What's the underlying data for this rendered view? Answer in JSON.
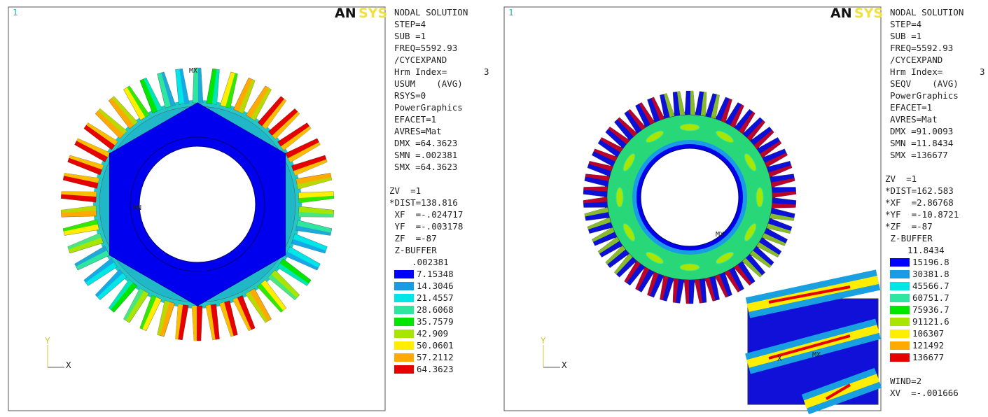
{
  "panels": [
    {
      "window": "1",
      "logo_a": "AN",
      "logo_b": "SYS",
      "info_a": [
        "NODAL SOLUTION",
        "STEP=4",
        "SUB =1",
        "FREQ=5592.93",
        "/CYCEXPAND"
      ],
      "hrm": {
        "label": "Hrm Index=",
        "value": "3"
      },
      "info_b": [
        "USUM    (AVG)",
        "RSYS=0",
        "PowerGraphics",
        "EFACET=1",
        "AVRES=Mat",
        "DMX =64.3623",
        "SMN =.002381",
        "SMX =64.3623"
      ],
      "view": [
        "ZV  =1",
        "*DIST=138.816",
        " XF  =-.024717",
        " YF  =-.003178",
        " ZF  =-87",
        " Z-BUFFER"
      ],
      "legend_min": ".002381",
      "legend": [
        {
          "value": "7.15348",
          "color": "#0000ff"
        },
        {
          "value": "14.3046",
          "color": "#1a9be6"
        },
        {
          "value": "21.4557",
          "color": "#00e5e5"
        },
        {
          "value": "28.6068",
          "color": "#2ee6a0"
        },
        {
          "value": "35.7579",
          "color": "#00e600"
        },
        {
          "value": "42.909",
          "color": "#a8e600"
        },
        {
          "value": "50.0601",
          "color": "#ffee00"
        },
        {
          "value": "57.2112",
          "color": "#ffaa00"
        },
        {
          "value": "64.3623",
          "color": "#e60000"
        }
      ],
      "mx": "MX",
      "mn": "MN",
      "axis_y": "Y",
      "axis_x": "X"
    },
    {
      "window": "1",
      "logo_a": "AN",
      "logo_b": "SYS",
      "info_a": [
        "NODAL SOLUTION",
        "STEP=4",
        "SUB =1",
        "FREQ=5592.93",
        "/CYCEXPAND"
      ],
      "hrm": {
        "label": "Hrm Index=",
        "value": "3"
      },
      "info_b": [
        "SEQV    (AVG)",
        "PowerGraphics",
        "EFACET=1",
        "AVRES=Mat",
        "DMX =91.0093",
        "SMN =11.8434",
        "SMX =136677"
      ],
      "view": [
        "ZV  =1",
        "*DIST=162.583",
        "*XF  =2.86768",
        "*YF  =-10.8721",
        "*ZF  =-87",
        " Z-BUFFER"
      ],
      "legend_min": "11.8434",
      "legend": [
        {
          "value": "15196.8",
          "color": "#0000ff"
        },
        {
          "value": "30381.8",
          "color": "#1a9be6"
        },
        {
          "value": "45566.7",
          "color": "#00e5e5"
        },
        {
          "value": "60751.7",
          "color": "#2ee6a0"
        },
        {
          "value": "75936.7",
          "color": "#00e600"
        },
        {
          "value": "91121.6",
          "color": "#a8e600"
        },
        {
          "value": "106307",
          "color": "#ffee00"
        },
        {
          "value": "121492",
          "color": "#ffaa00"
        },
        {
          "value": "136677",
          "color": "#e60000"
        }
      ],
      "footer": [
        "WIND=2",
        "XV  =-.001666"
      ],
      "mx": "MX",
      "axis_y": "Y",
      "axis_x": "X",
      "inset_x": "X",
      "inset_mx": "MX"
    }
  ]
}
